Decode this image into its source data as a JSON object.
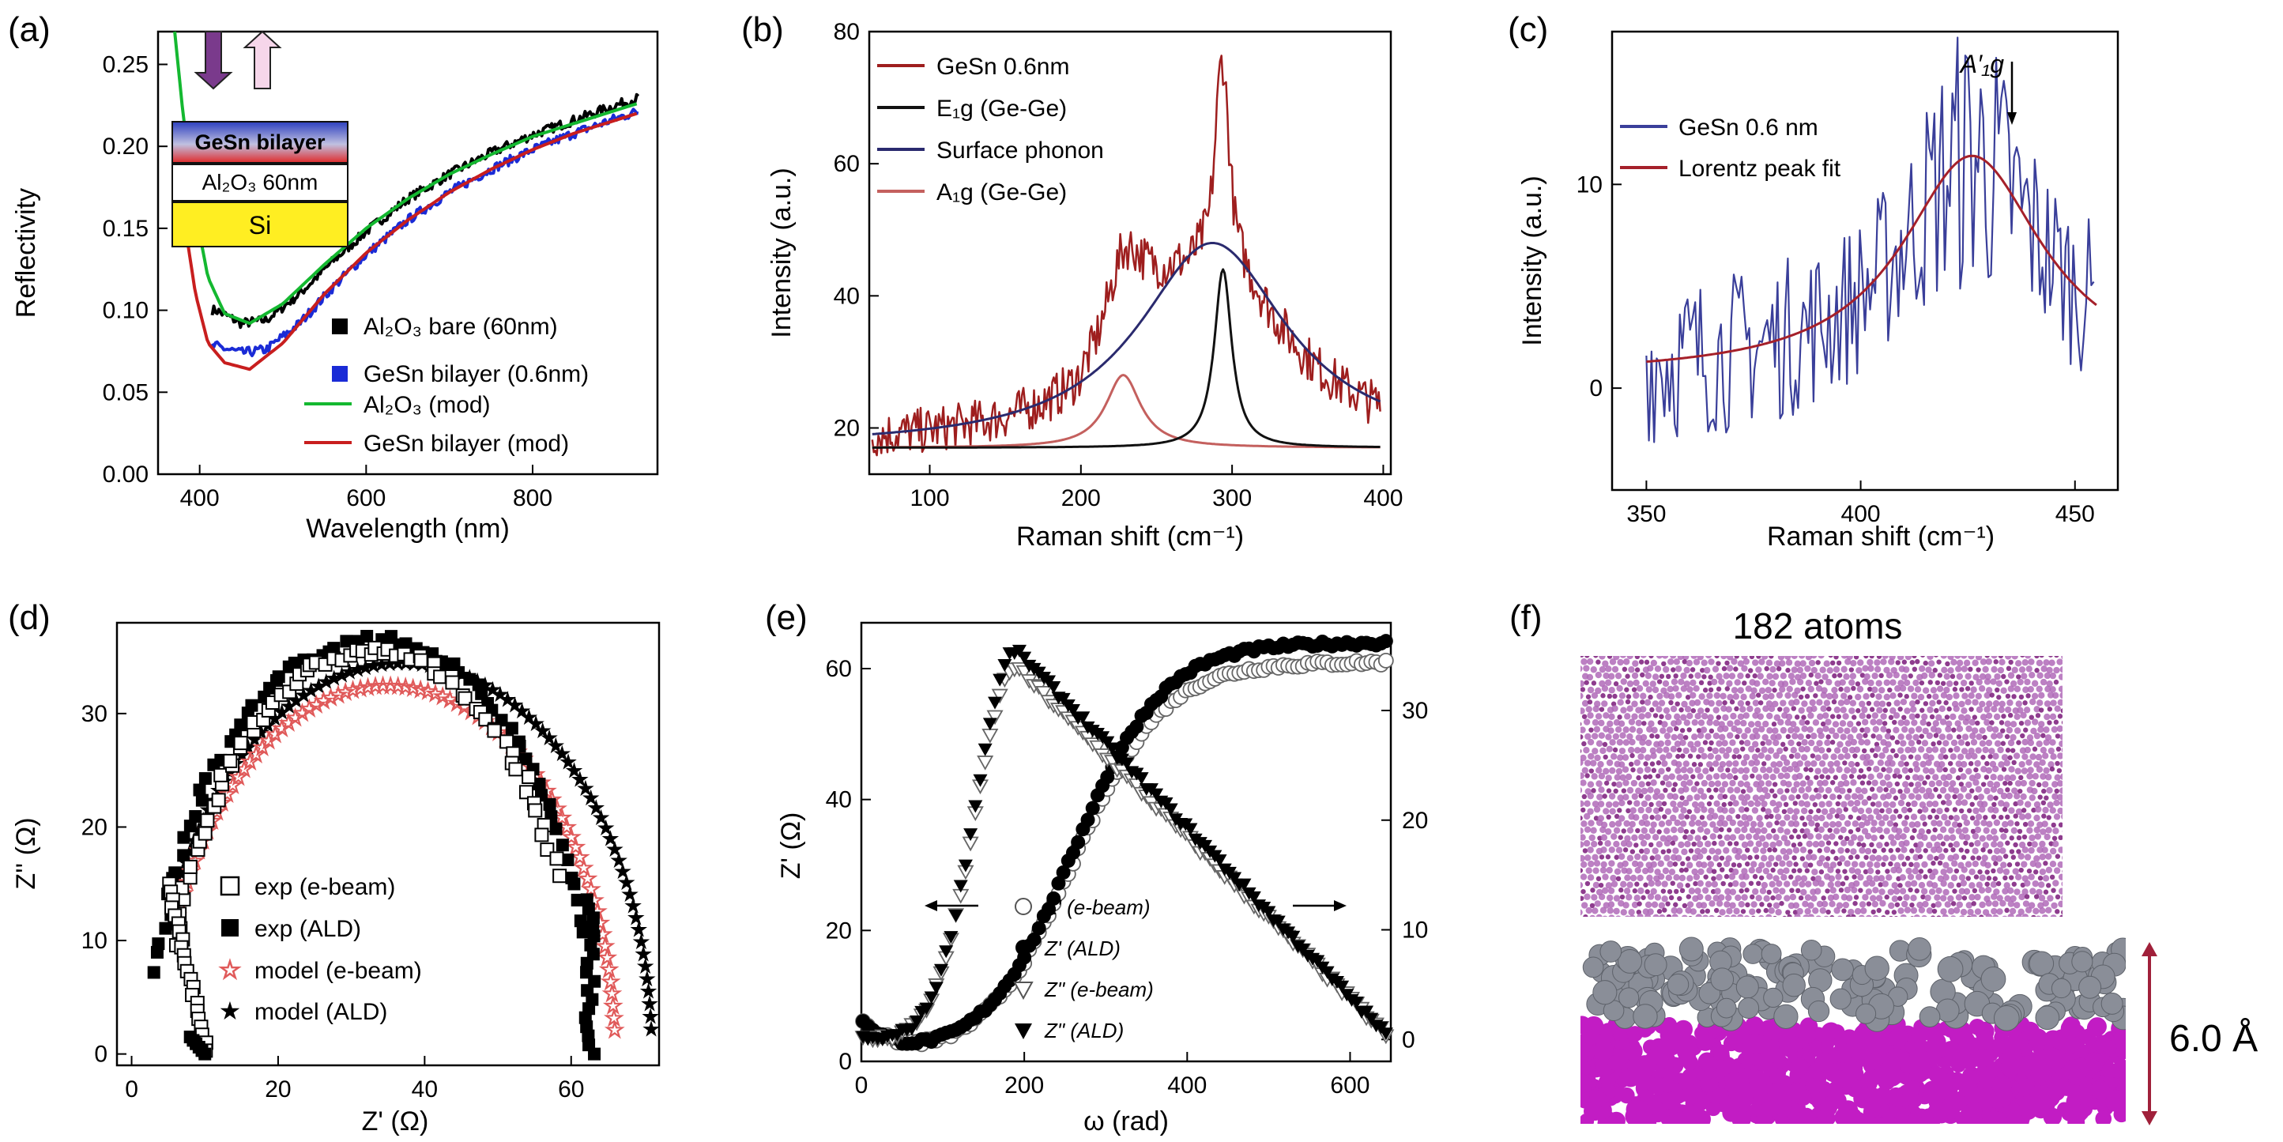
{
  "chart_data": [
    {
      "panel": "(a)",
      "type": "line",
      "xlabel": "Wavelength (nm)",
      "ylabel": "Reflectivity",
      "xlim": [
        350,
        950
      ],
      "ylim": [
        0.0,
        0.27
      ],
      "xticks": [
        "400",
        "600",
        "800"
      ],
      "yticks": [
        "0.00",
        "0.05",
        "0.10",
        "0.15",
        "0.20",
        "0.25"
      ],
      "series": [
        {
          "name": "Al2O3 bare (60nm)",
          "style": "black squares",
          "color": "#000000",
          "x": [
            420,
            450,
            480,
            520,
            560,
            600,
            650,
            700,
            750,
            800,
            850,
            900,
            925
          ],
          "y": [
            0.1,
            0.092,
            0.094,
            0.11,
            0.13,
            0.148,
            0.168,
            0.183,
            0.196,
            0.207,
            0.216,
            0.225,
            0.229
          ]
        },
        {
          "name": "GeSn bilayer (0.6nm)",
          "style": "blue squares",
          "color": "#1a2bd6",
          "x": [
            420,
            450,
            480,
            520,
            560,
            600,
            650,
            700,
            750,
            800,
            850,
            900,
            925
          ],
          "y": [
            0.078,
            0.074,
            0.076,
            0.092,
            0.114,
            0.134,
            0.155,
            0.172,
            0.186,
            0.198,
            0.208,
            0.217,
            0.221
          ]
        },
        {
          "name": "Al2O3 (mod)",
          "style": "green line",
          "color": "#14b830",
          "x": [
            370,
            380,
            395,
            410,
            430,
            460,
            500,
            550,
            600,
            650,
            700,
            750,
            800,
            850,
            900,
            925
          ],
          "y": [
            0.27,
            0.22,
            0.16,
            0.12,
            0.098,
            0.092,
            0.104,
            0.128,
            0.15,
            0.168,
            0.183,
            0.195,
            0.206,
            0.214,
            0.222,
            0.226
          ]
        },
        {
          "name": "GeSn bilayer (mod)",
          "style": "red line",
          "color": "#c81e1e",
          "x": [
            370,
            380,
            395,
            410,
            430,
            460,
            500,
            550,
            600,
            650,
            700,
            750,
            800,
            850,
            900,
            925
          ],
          "y": [
            0.215,
            0.16,
            0.11,
            0.08,
            0.068,
            0.064,
            0.08,
            0.11,
            0.135,
            0.155,
            0.172,
            0.186,
            0.198,
            0.208,
            0.216,
            0.22
          ]
        }
      ],
      "legend_labels": [
        "Al₂O₃ bare (60nm)",
        "GeSn bilayer (0.6nm)",
        "Al₂O₃ (mod)",
        "GeSn bilayer (mod)"
      ],
      "inset": {
        "top": "GeSn bilayer",
        "middle": "Al₂O₃ 60nm",
        "bottom": "Si"
      }
    },
    {
      "panel": "(b)",
      "type": "line",
      "xlabel": "Raman shift (cm⁻¹)",
      "ylabel": "Intensity (a.u.)",
      "xlim": [
        60,
        405
      ],
      "ylim": [
        13,
        80
      ],
      "xticks": [
        "100",
        "200",
        "300",
        "400"
      ],
      "yticks": [
        "20",
        "40",
        "60",
        "80"
      ],
      "series": [
        {
          "name": "GeSn 0.6nm",
          "color": "#9e1e1e",
          "noisy": true
        },
        {
          "name": "E1g (Ge-Ge)",
          "color": "#111111",
          "lorentz": {
            "center": 294,
            "width": 7,
            "height": 27,
            "base": 17
          }
        },
        {
          "name": "Surface phonon",
          "color": "#2a2a6e",
          "lorentz": {
            "center": 287,
            "width": 60,
            "height": 31,
            "base": 17
          }
        },
        {
          "name": "A1g (Ge-Ge)",
          "color": "#c4605e",
          "lorentz": {
            "center": 228,
            "width": 14,
            "height": 11,
            "base": 17
          }
        }
      ],
      "legend_labels": [
        "GeSn 0.6nm",
        "E₁g (Ge-Ge)",
        "Surface phonon",
        "A₁g (Ge-Ge)"
      ]
    },
    {
      "panel": "(c)",
      "type": "line",
      "xlabel": "Raman shift (cm⁻¹)",
      "ylabel": "Intensity (a.u.)",
      "xlim": [
        342,
        460
      ],
      "ylim": [
        -5,
        17.5
      ],
      "xticks": [
        "350",
        "400",
        "450"
      ],
      "yticks": [
        "0",
        "10"
      ],
      "series": [
        {
          "name": "GeSn 0.6 nm",
          "color": "#3a3f9a",
          "noisy": true
        },
        {
          "name": "Lorentz peak fit",
          "color": "#a5202a",
          "lorentz": {
            "center": 426,
            "width": 20,
            "height": 10.8,
            "base": 0.6
          }
        }
      ],
      "legend_labels": [
        "GeSn 0.6 nm",
        "Lorentz peak fit"
      ],
      "annotation": "A′₁g"
    },
    {
      "panel": "(d)",
      "type": "scatter",
      "xlabel": "Z' (Ω)",
      "ylabel": "Z'' (Ω)",
      "xlim": [
        -2,
        72
      ],
      "ylim": [
        -1,
        38
      ],
      "xticks": [
        "0",
        "20",
        "40",
        "60"
      ],
      "yticks": [
        "0",
        "10",
        "20",
        "30"
      ],
      "series": [
        {
          "name": "exp (e-beam)",
          "marker": "open square",
          "color": "#000000",
          "arc": {
            "cx": 33,
            "r": 28,
            "amp": 35.5
          }
        },
        {
          "name": "exp (ALD)",
          "marker": "filled square",
          "color": "#000000",
          "arc": {
            "cx": 33,
            "r": 30,
            "amp": 36.5
          }
        },
        {
          "name": "model (e-beam)",
          "marker": "open star",
          "color": "#e05a5a",
          "arc": {
            "cx": 35,
            "r": 31,
            "amp": 32.5
          }
        },
        {
          "name": "model (ALD)",
          "marker": "filled star",
          "color": "#2a3fc8",
          "arc": {
            "cx": 37,
            "r": 34,
            "amp": 34.5
          }
        }
      ],
      "legend_labels": [
        "exp (e-beam)",
        "exp (ALD)",
        "model (e-beam)",
        "model (ALD)"
      ]
    },
    {
      "panel": "(e)",
      "type": "scatter",
      "xlabel": "ω (rad)",
      "ylabel": "Z' (Ω)",
      "y2label": "",
      "xlim": [
        0,
        650
      ],
      "ylim": [
        0,
        67
      ],
      "y2lim": [
        -2,
        38
      ],
      "xticks": [
        "0",
        "200",
        "400",
        "600"
      ],
      "yticks": [
        "0",
        "20",
        "40",
        "60"
      ],
      "y2ticks": [
        "0",
        "10",
        "20",
        "30"
      ],
      "series": [
        {
          "name": "Z' (e-beam)",
          "marker": "open circle",
          "axis": "left",
          "plateau": 61
        },
        {
          "name": "Z' (ALD)",
          "marker": "filled circle",
          "axis": "left",
          "plateau": 64
        },
        {
          "name": "Z'' (e-beam)",
          "marker": "open triangle",
          "axis": "right",
          "peak": 34
        },
        {
          "name": "Z'' (ALD)",
          "marker": "filled triangle",
          "axis": "right",
          "peak": 35.5
        }
      ],
      "legend_labels": [
        "Z' (e-beam)",
        "Z' (ALD)",
        "Z\" (e-beam)",
        "Z\" (ALD)"
      ]
    },
    {
      "panel": "(f)",
      "type": "other",
      "title": "182 atoms",
      "dimension": "6.0 Å"
    }
  ],
  "labels": {
    "a": "(a)",
    "b": "(b)",
    "c": "(c)",
    "d": "(d)",
    "e": "(e)",
    "f": "(f)",
    "a_xlabel": "Wavelength (nm)",
    "a_ylabel": "Reflectivity",
    "b_xlabel": "Raman shift (cm⁻¹)",
    "b_ylabel": "Intensity (a.u.)",
    "c_xlabel": "Raman shift (cm⁻¹)",
    "c_ylabel": "Intensity (a.u.)",
    "d_xlabel": "Z' (Ω)",
    "d_ylabel": "Z'' (Ω)",
    "e_xlabel": "ω (rad)",
    "e_ylabel": "Z' (Ω)",
    "f_title": "182 atoms",
    "f_dim": "6.0 Å"
  },
  "colors": {
    "atom_light": "#b06ab8",
    "atom_dark": "#7a1a7a",
    "ge": "#8a8e98",
    "sub": "#c21cc4",
    "arrow": "#a0203a"
  }
}
